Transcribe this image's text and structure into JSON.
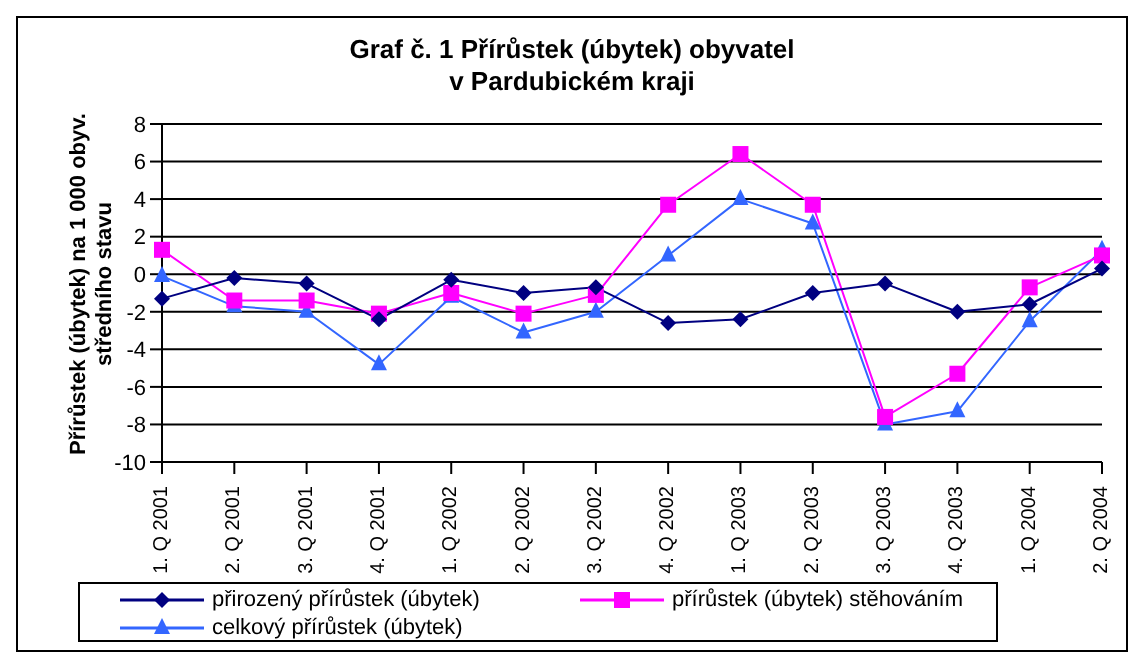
{
  "chart_data": {
    "type": "line",
    "title": "Graf č. 1  Přírůstek (úbytek) obyvatel\nv Pardubickém kraji",
    "ylabel": "Přírůstek (úbytek) na 1 000 obyv.\nstředního stavu",
    "categories": [
      "1. Q 2001",
      "2. Q 2001",
      "3. Q 2001",
      "4. Q 2001",
      "1. Q 2002",
      "2. Q 2002",
      "3. Q 2002",
      "4. Q 2002",
      "1. Q 2003",
      "2. Q 2003",
      "3. Q 2003",
      "4. Q 2003",
      "1. Q 2004",
      "2. Q 2004"
    ],
    "series": [
      {
        "name": "přirozený přírůstek (úbytek)",
        "color": "#000080",
        "marker": "diamond",
        "values": [
          -1.3,
          -0.2,
          -0.5,
          -2.4,
          -0.3,
          -1.0,
          -0.7,
          -2.6,
          -2.4,
          -1.0,
          -0.5,
          -2.0,
          -1.6,
          0.3
        ]
      },
      {
        "name": "přírůstek (úbytek) stěhováním",
        "color": "#ff00ff",
        "marker": "square",
        "values": [
          1.3,
          -1.4,
          -1.4,
          -2.1,
          -1.0,
          -2.1,
          -1.1,
          3.7,
          6.4,
          3.7,
          -7.6,
          -5.3,
          -0.7,
          1.0
        ]
      },
      {
        "name": "celkový přírůstek (úbytek)",
        "color": "#3366ff",
        "marker": "triangle",
        "values": [
          -0.1,
          -1.7,
          -2.0,
          -4.8,
          -1.2,
          -3.1,
          -2.0,
          1.0,
          4.0,
          2.7,
          -8.0,
          -7.3,
          -2.5,
          1.3
        ]
      }
    ],
    "ylim": [
      -10,
      8
    ],
    "yticks": [
      -10,
      -8,
      -6,
      -4,
      -2,
      0,
      2,
      4,
      6,
      8
    ],
    "grid": "y",
    "legend": "bottom",
    "line_style": "solid"
  }
}
